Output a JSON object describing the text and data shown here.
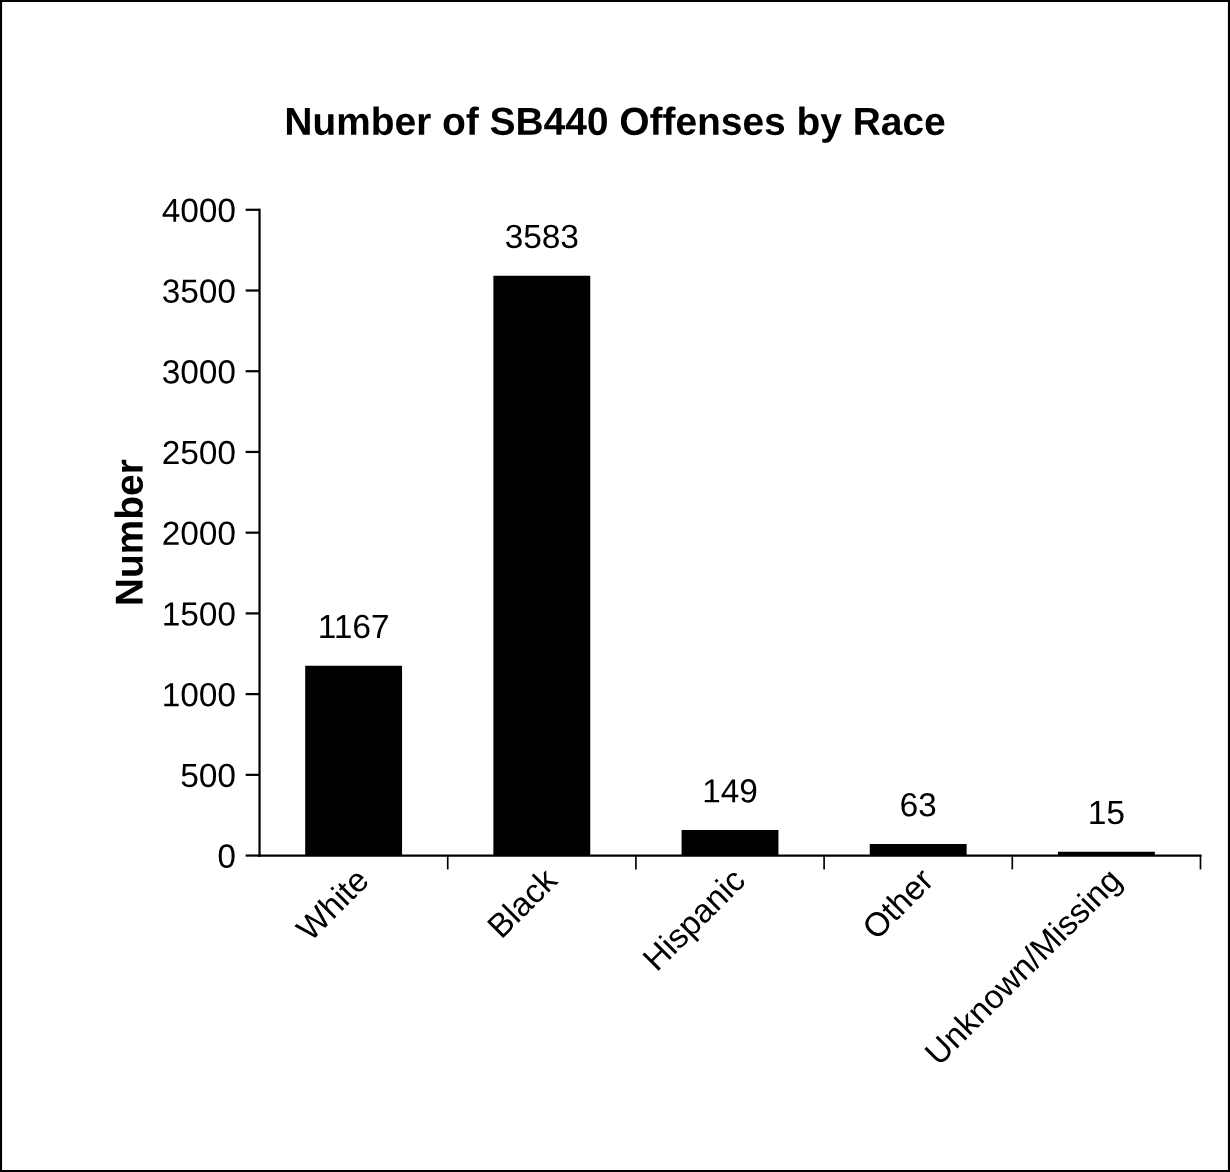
{
  "chart_data": {
    "type": "bar",
    "title": "Number of SB440 Offenses by Race",
    "ylabel": "Number",
    "categories": [
      "White",
      "Black",
      "Hispanic",
      "Other",
      "Unknown/Missing"
    ],
    "values": [
      1167,
      3583,
      149,
      63,
      15
    ],
    "color": "#000000",
    "ylim": [
      0,
      4000
    ],
    "yticks": [
      0,
      500,
      1000,
      1500,
      2000,
      2500,
      3000,
      3500,
      4000
    ],
    "grid": false,
    "legend": false,
    "data_labels": true
  }
}
